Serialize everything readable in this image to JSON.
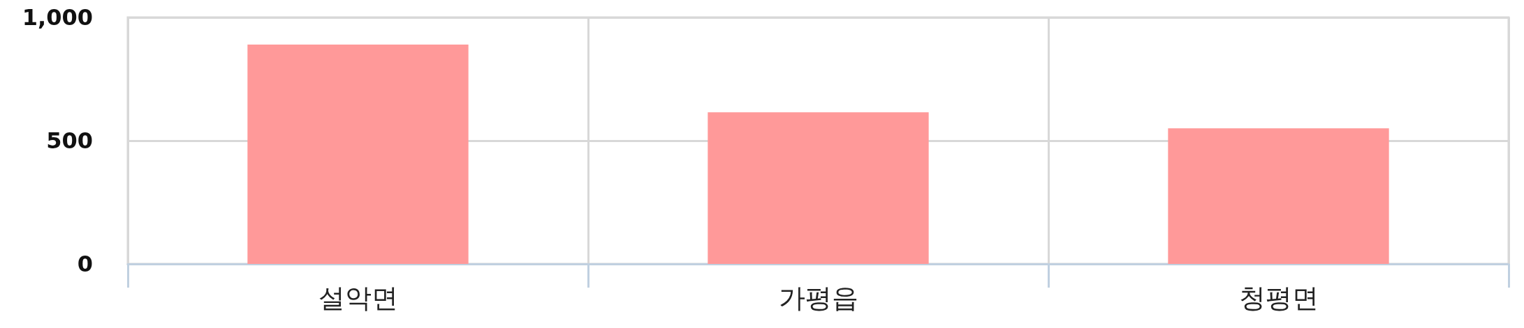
{
  "chart_data": {
    "type": "bar",
    "categories": [
      "설악면",
      "가평읍",
      "청평면"
    ],
    "values": [
      890,
      615,
      550
    ],
    "color": "#ff9999",
    "ylim": [
      0,
      1000
    ],
    "yticks": [
      0,
      500,
      {
        "value": 1000,
        "label": "1,000"
      }
    ],
    "grid": true
  }
}
